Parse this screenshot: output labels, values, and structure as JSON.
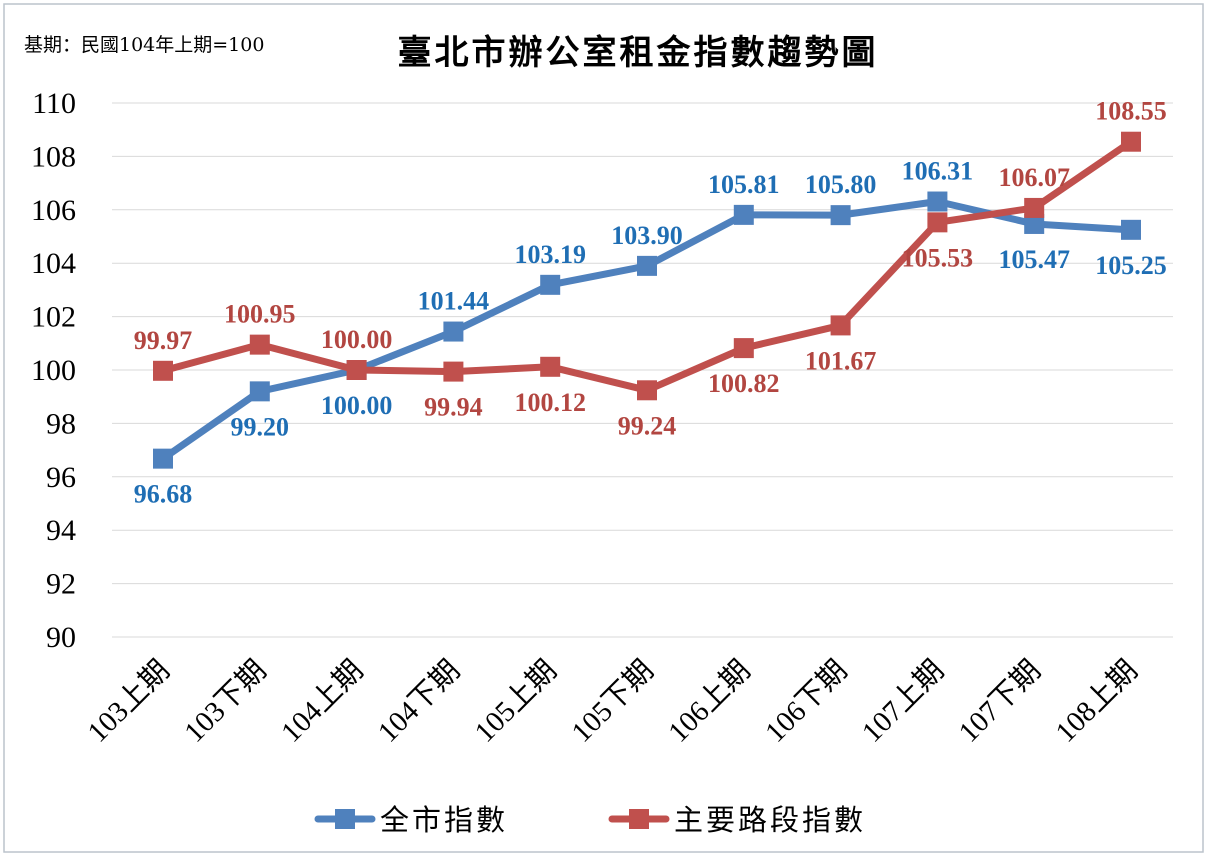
{
  "chart_data": {
    "type": "line",
    "title": "臺北市辦公室租金指數趨勢圖",
    "note": "基期：民國104年上期=100",
    "categories": [
      "103上期",
      "103下期",
      "104上期",
      "104下期",
      "105上期",
      "105下期",
      "106上期",
      "106下期",
      "107上期",
      "107下期",
      "108上期"
    ],
    "ylim": [
      90,
      110
    ],
    "yticks": [
      90,
      92,
      94,
      96,
      98,
      100,
      102,
      104,
      106,
      108,
      110
    ],
    "grid": true,
    "legend": "bottom",
    "series": [
      {
        "name": "全市指數",
        "color": "#4F81BD",
        "label_color": "#1F6EB4",
        "values": [
          96.68,
          99.2,
          100.0,
          101.44,
          103.19,
          103.9,
          105.81,
          105.8,
          106.31,
          105.47,
          105.25
        ],
        "labels": [
          "96.68",
          "99.20",
          "100.00",
          "101.44",
          "103.19",
          "103.90",
          "105.81",
          "105.80",
          "106.31",
          "105.47",
          "105.25"
        ]
      },
      {
        "name": "主要路段指數",
        "color": "#C0504D",
        "label_color": "#B24641",
        "values": [
          99.97,
          100.95,
          100.0,
          99.94,
          100.12,
          99.24,
          100.82,
          101.67,
          105.53,
          106.07,
          108.55
        ],
        "labels": [
          "99.97",
          "100.95",
          "100.00",
          "99.94",
          "100.12",
          "99.24",
          "100.82",
          "101.67",
          "105.53",
          "106.07",
          "108.55"
        ]
      }
    ]
  }
}
